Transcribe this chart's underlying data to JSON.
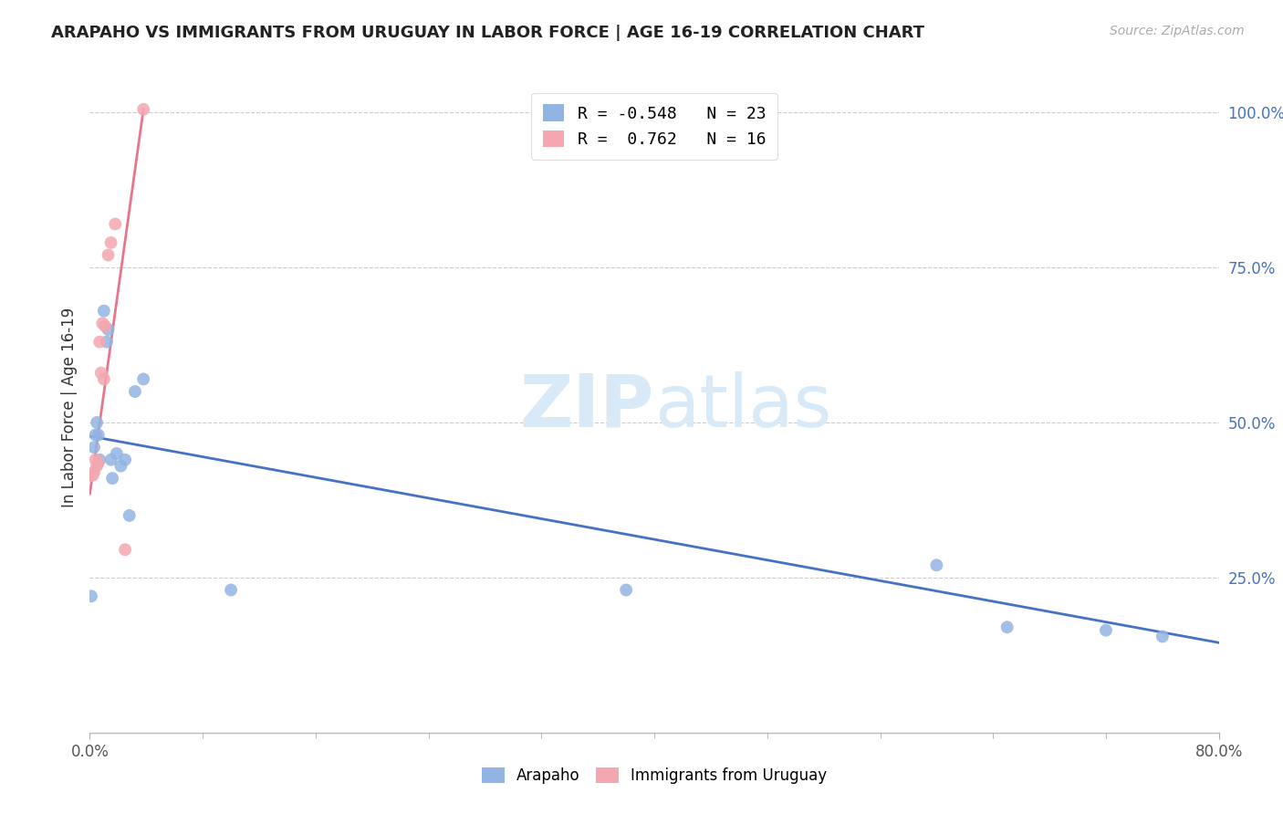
{
  "title": "ARAPAHO VS IMMIGRANTS FROM URUGUAY IN LABOR FORCE | AGE 16-19 CORRELATION CHART",
  "source": "Source: ZipAtlas.com",
  "ylabel": "In Labor Force | Age 16-19",
  "xlim": [
    0.0,
    0.8
  ],
  "ylim": [
    0.0,
    1.05
  ],
  "ytick_vals": [
    0.25,
    0.5,
    0.75,
    1.0
  ],
  "xtick_vals": [
    0.0,
    0.8
  ],
  "arapaho_R": -0.548,
  "arapaho_N": 23,
  "uruguay_R": 0.762,
  "uruguay_N": 16,
  "arapaho_color": "#92b4e3",
  "uruguay_color": "#f4a7b0",
  "arapaho_line_color": "#4472c4",
  "uruguay_line_color": "#e8758a",
  "arapaho_x": [
    0.001,
    0.003,
    0.004,
    0.005,
    0.006,
    0.007,
    0.01,
    0.012,
    0.013,
    0.015,
    0.016,
    0.019,
    0.022,
    0.025,
    0.028,
    0.032,
    0.038,
    0.1,
    0.38,
    0.6,
    0.65,
    0.72,
    0.76
  ],
  "arapaho_y": [
    0.22,
    0.46,
    0.48,
    0.5,
    0.48,
    0.44,
    0.68,
    0.63,
    0.65,
    0.44,
    0.41,
    0.45,
    0.43,
    0.44,
    0.35,
    0.55,
    0.57,
    0.23,
    0.23,
    0.27,
    0.17,
    0.165,
    0.155
  ],
  "uruguay_x": [
    0.001,
    0.002,
    0.003,
    0.004,
    0.005,
    0.006,
    0.007,
    0.008,
    0.009,
    0.01,
    0.011,
    0.013,
    0.015,
    0.018,
    0.025,
    0.038
  ],
  "uruguay_y": [
    0.415,
    0.415,
    0.42,
    0.44,
    0.43,
    0.435,
    0.63,
    0.58,
    0.66,
    0.57,
    0.655,
    0.77,
    0.79,
    0.82,
    0.295,
    1.005
  ],
  "blue_line_x": [
    0.0,
    0.8
  ],
  "blue_line_y": [
    0.478,
    0.145
  ],
  "pink_line_x": [
    0.0,
    0.038
  ],
  "pink_line_y": [
    0.385,
    1.005
  ]
}
